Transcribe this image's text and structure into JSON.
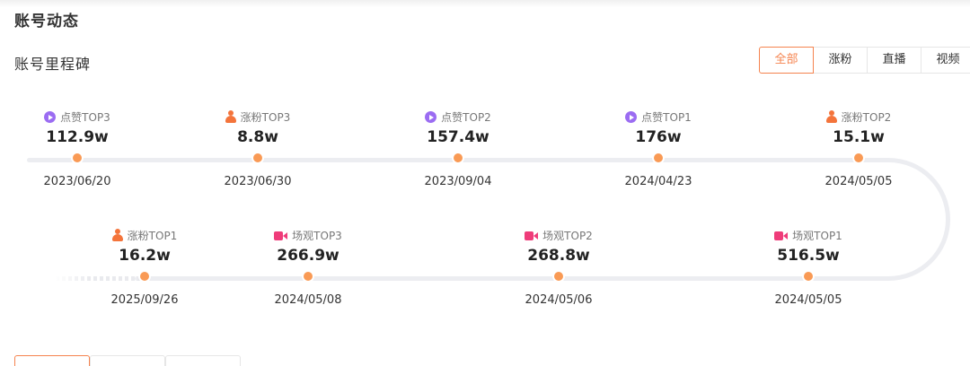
{
  "section": {
    "title": "账号动态"
  },
  "milestones_header": {
    "title": "账号里程碑"
  },
  "filters": [
    {
      "label": "全部",
      "active": true
    },
    {
      "label": "涨粉",
      "active": false
    },
    {
      "label": "直播",
      "active": false
    },
    {
      "label": "视频",
      "active": false
    }
  ],
  "colors": {
    "accent": "#f5834e",
    "dot": "#f99a55",
    "like": "#9b6cf2",
    "fans": "#f4743b",
    "view": "#ef3c7a"
  },
  "row1": [
    {
      "icon": "like-icon",
      "label": "点赞TOP3",
      "value": "112.9w",
      "date": "2023/06/20"
    },
    {
      "icon": "fans-icon",
      "label": "涨粉TOP3",
      "value": "8.8w",
      "date": "2023/06/30"
    },
    {
      "icon": "like-icon",
      "label": "点赞TOP2",
      "value": "157.4w",
      "date": "2023/09/04"
    },
    {
      "icon": "like-icon",
      "label": "点赞TOP1",
      "value": "176w",
      "date": "2024/04/23"
    },
    {
      "icon": "fans-icon",
      "label": "涨粉TOP2",
      "value": "15.1w",
      "date": "2024/05/05"
    }
  ],
  "row2": [
    {
      "icon": "fans-icon",
      "label": "涨粉TOP1",
      "value": "16.2w",
      "date": "2025/09/26"
    },
    {
      "icon": "video-icon",
      "label": "场观TOP3",
      "value": "266.9w",
      "date": "2024/05/08"
    },
    {
      "icon": "video-icon",
      "label": "场观TOP2",
      "value": "268.8w",
      "date": "2024/05/06"
    },
    {
      "icon": "video-icon",
      "label": "场观TOP1",
      "value": "516.5w",
      "date": "2024/05/05"
    }
  ]
}
